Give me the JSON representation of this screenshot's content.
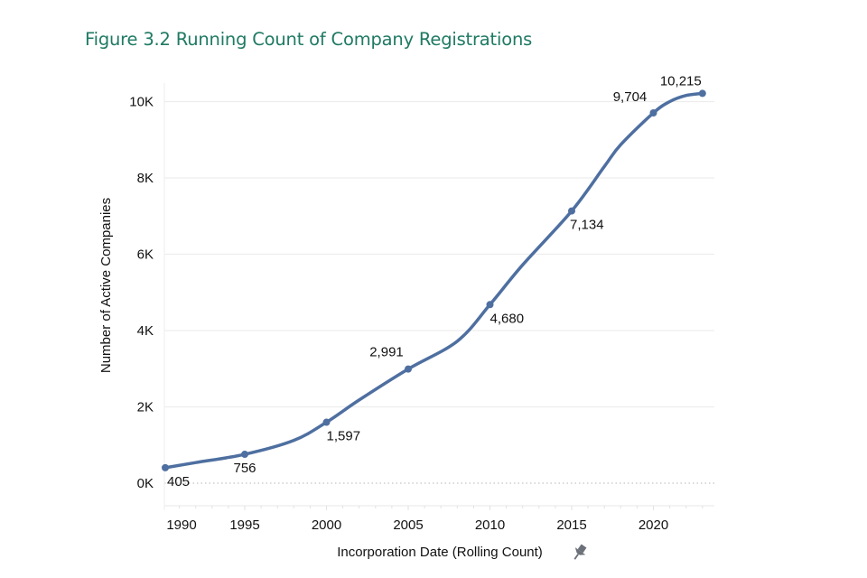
{
  "title": "Figure 3.2 Running Count of Company Registrations",
  "chart_data": {
    "type": "line",
    "title": "Figure 3.2 Running Count of Company Registrations",
    "xlabel": "Incorporation Date (Rolling Count)",
    "ylabel": "Number of Active Companies",
    "xlim": [
      1990,
      2024
    ],
    "ylim": [
      0,
      10500
    ],
    "x_ticks": [
      1990,
      1995,
      2000,
      2005,
      2010,
      2015,
      2020
    ],
    "x_tick_labels": [
      "1990",
      "1995",
      "2000",
      "2005",
      "2010",
      "2015",
      "2020"
    ],
    "y_ticks": [
      0,
      2000,
      4000,
      6000,
      8000,
      10000
    ],
    "y_tick_labels": [
      "0K",
      "2K",
      "4K",
      "6K",
      "8K",
      "10K"
    ],
    "grid": true,
    "line_color": "#4e6fa0",
    "series": [
      {
        "name": "Number of Active Companies",
        "x": [
          1990,
          1992,
          1995,
          1998,
          2000,
          2002,
          2005,
          2008,
          2010,
          2012,
          2015,
          2017,
          2018,
          2020,
          2021,
          2022,
          2023
        ],
        "y": [
          405,
          540,
          756,
          1120,
          1597,
          2180,
          2991,
          3720,
          4680,
          5720,
          7134,
          8300,
          8870,
          9704,
          10000,
          10160,
          10215
        ]
      }
    ],
    "labeled_points": [
      {
        "x": 1990,
        "y": 405,
        "label": "405"
      },
      {
        "x": 1995,
        "y": 756,
        "label": "756"
      },
      {
        "x": 2000,
        "y": 1597,
        "label": "1,597"
      },
      {
        "x": 2005,
        "y": 2991,
        "label": "2,991"
      },
      {
        "x": 2010,
        "y": 4680,
        "label": "4,680"
      },
      {
        "x": 2015,
        "y": 7134,
        "label": "7,134"
      },
      {
        "x": 2020,
        "y": 9704,
        "label": "9,704"
      },
      {
        "x": 2023,
        "y": 10215,
        "label": "10,215"
      }
    ],
    "annotations": [
      "pin-icon next to x-axis title"
    ]
  }
}
